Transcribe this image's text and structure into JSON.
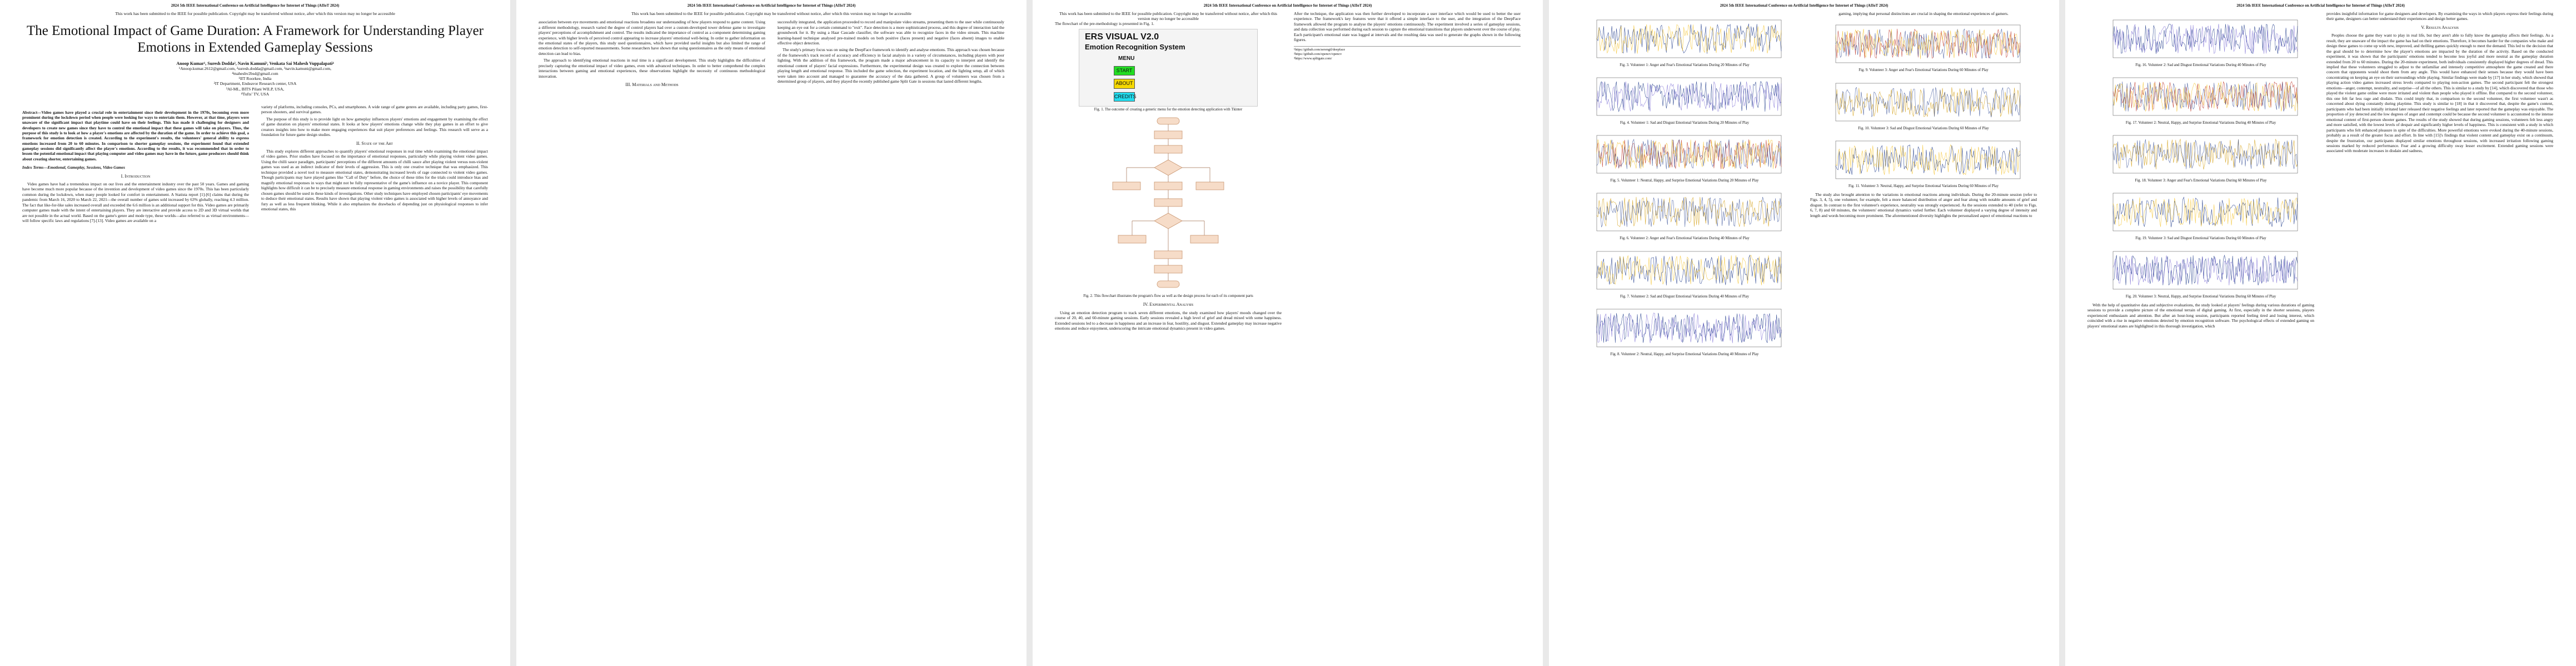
{
  "header": "2024 5th IEEE International Conference on Artificial Intelligence for Internet of Things (AIIoT 2024)",
  "notice": "This work has been submitted to the IEEE for possible publication. Copyright may be transferred without notice, after which this version may no longer be accessible",
  "title": "The Emotional Impact of Game Duration: A Framework for Understanding Player Emotions in Extended Gameplay Sessions",
  "authors": "Anoop Kumar¹, Suresh Dodda², Navin Kamuni³, Venkata Sai Mahesh Vuppalapati⁴",
  "affiliations": [
    "¹Anoop.kumar.2612@gmail.com, ²suresh.dodda@gmail.com, ³navin.kamuni@gmail.com,",
    "⁴maheshv2bsd@gmail.com",
    "¹IIT Roorkee, India",
    "²IT Department, Endeavor Research center, USA",
    "³AI-ML, BITS Pilani WILP, USA,",
    "⁴Tufts’ TV, USA"
  ],
  "abstract": "Abstract—Video games have played a crucial role in entertainment since their development in the 1970s, becoming even more prominent during the lockdown period when people were looking for ways to entertain them. However, at that time, players were unaware of the significant impact that playtime could have on their feelings. This has made it challenging for designers and developers to create new games since they have to control the emotional impact that these games will take on players. Thus, the purpose of this study is to look at how a player's emotions are affected by the duration of the game. In order to achieve this goal, a framework for emotion detection is created. According to the experiment's results, the volunteers' general ability to express emotions increased from 20 to 60 minutes. In comparison to shorter gameplay sessions, the experiment found that extended gameplay sessions did significantly affect the player's emotions. According to the results, it was recommended that in order to lessen the potential emotional impact that playing computer and video games may have in the future, game producers should think about creating shorter, entertaining games.",
  "index_terms": "Index Terms—Emotional, Gameplay, Sessions, Video Games",
  "sections": {
    "intro": "I. Introduction",
    "state": "II. State of the Art",
    "methods": "III. Materials and Methods",
    "experiment": "IV. Experimental Analysis",
    "results": "V. Results Analysis"
  },
  "p1": {
    "col1": [
      "Video games have had a tremendous impact on our lives and the entertainment industry over the past 50 years. Games and gaming have become much more popular because of the invention and development of video games since the 1970s. This has been particularly common during the lockdown, when many people looked for comfort in entertainment. A Statista report [1]-[6] claims that during the pandemic from March 16, 2020 to March 22, 2021—the overall number of games sold increased by 63% globally, reaching 4.3 million. The fact that like-for-like sales increased overall and exceeded the 6.6 million is an additional support for this. Video games are primarily computer games made with the intent of entertaining players. They are interactive and provide access to 2D and 3D virtual worlds that are not possible in the actual world. Based on the game's genre and mode type, these worlds—also referred to as virtual environments—will follow specific laws and regulations [7]-[13]. Video games are available on a"
    ],
    "col2": [
      "variety of platforms, including consoles, PCs, and smartphones. A wide range of game genres are available, including party games, first-person shooters, and survival games.",
      "The purpose of this study is to provide light on how gameplay influences players' emotions and engagement by examining the effect of game duration on players' emotional states. It looks at how players' emotions change while they play games in an effort to give creators insights into how to make more engaging experiences that suit player preferences and feelings. This research will serve as a foundation for future game design studies.",
      "This study explores different approaches to quantify players' emotional responses in real time while examining the emotional impact of video games. Prior studies have focused on the importance of emotional responses, particularly while playing violent video games. Using the chilli sauce paradigm, participants' perceptions of the different amounts of chilli sauce after playing violent versus non-violent games was used as an indirect indicator of their levels of aggression. This is only one creative technique that was emphasized. This technique provided a novel tool to measure emotional states, demonstrating increased levels of rage connected to violent video games. Though participants may have played games like \"Call of Duty\" before, the choice of these titles for the trials could introduce bias and magnify emotional responses in ways that might not be fully representative of the game's influence on a novice player. This component highlights how difficult it can be to precisely measure emotional response in gaming environments and raises the possibility that carefully chosen games should be used in these kinds of investigations. Other study techniques have employed chosen participants' eye movements to deduce their emotional states. Results have shown that playing violent video games is associated with higher levels of annoyance and fury as well as less frequent blinking. While it also emphasizes the drawbacks of depending just on physiological responses to infer emotional states, this"
    ]
  },
  "p2": {
    "col1": [
      "association between eye movements and emotional reactions broadens our understanding of how players respond to game content. Using a different methodology, research varied the degree of control players had over a custom-developed tower defense game to investigate players' perceptions of accomplishment and control. The results indicated the importance of control as a component determining gaming experience, with higher levels of perceived control appearing to increase players' emotional well-being. In order to gather information on the emotional states of the players, this study used questionnaires, which have provided useful insights but also limited the range of emotion detection to self-reported measurements. Some researchers have shown that using questionnaires as the only means of emotional detection can lead to bias.",
      "The approach to identifying emotional reactions in real time is a significant development. This study highlights the difficulties of precisely capturing the emotional impact of video games, even with advanced techniques. In order to better comprehend the complex interactions between gaming and emotional experiences, these observations highlight the necessity of continuous methodological innovation."
    ],
    "col2": [
      "successfully integrated, the application proceeded to record and manipulate video streams, presenting them to the user while continuously keeping an eye out for a certain command to \"exit\". Face detection is a more sophisticated process, and this degree of interaction laid the groundwork for it. By using a Haar Cascade classifier, the software was able to recognize faces in the video stream. This machine learning-based technique analysed pre-trained models on both positive (faces present) and negative (faces absent) images to enable effective object detection.",
      "The study's primary focus was on using the DeepFace framework to identify and analyse emotions. This approach was chosen because of the framework's track record of accuracy and efficiency in facial analysis in a variety of circumstances, including players with poor lighting. With the addition of this framework, the program made a major advancement in its capacity to interpret and identify the emotional content of players' facial expressions. Furthermore, the experimental design was created to explore the connection between playing length and emotional response. This included the game selection, the experiment location, and the lighting setup, all of which were taken into account and managed to guarantee the accuracy of the data gathered. A group of volunteers was chosen from a determined group of players, and they played the recently published game Split Gate in sessions that lasted different lengths."
    ]
  },
  "p3": {
    "col1": [
      "The flowchart of the pre-methodology is presented in Fig. 1."
    ],
    "gui": {
      "title": "ERS VISUAL V2.0",
      "subtitle": "Emotion Recognition System",
      "menu": "MENU",
      "start": "START",
      "about": "ABOUT",
      "credits": "CREDITS"
    },
    "fig1_cap": "Fig. 1. The outcome of creating a generic menu for the emotion detecting application with Tkinter",
    "fig2_cap": "Fig. 2. This flowchart illustrates the program's flow as well as the design process for each of its component parts",
    "exp_text": [
      "Using an emotion detection program to track seven different emotions, the study examined how players' moods changed over the course of 20, 40, and 60-minute gaming sessions. Early sessions revealed a high level of grief and dread mixed with some happiness. Extended sessions led to a decrease in happiness and an increase in fear, hostility, and disgust. Extended gameplay may increase negative emotions and reduce enjoyment, underscoring the intricate emotional dynamics present in video games."
    ],
    "col2": [
      "After the technique, the application was then further developed to incorporate a user interface which would be used to better the user experience. The framework's key features were that it offered a simple interface to the user, and the integration of the DeepFace framework allowed the program to analyse the players' emotions continuously. The experiment involved a series of gameplay sessions, and data collection was performed during each session to capture the emotional transitions that players underwent over the course of play. Each participant's emotional state was logged at intervals and the resulting data was used to generate the graphs shown in the following figures."
    ],
    "fn": [
      "¹https://github.com/serengil/deepface",
      "²https://github.com/opencv/opencv",
      "³https://www.splitgate.com/"
    ]
  },
  "p4": {
    "text": "gaming, implying that personal distinctions are crucial in shaping the emotional experiences of gamers.",
    "caps": [
      "Fig. 3. Volunteer 1: Anger and Fear's Emotional Variations During 20 Minutes of Play",
      "Fig. 4. Volunteer 1: Sad and Disgust Emotional Variations During 20 Minutes of Play",
      "Fig. 5. Volunteer 1: Neutral, Happy, and Surprise Emotional Variations During 20 Minutes of Play",
      "Fig. 6. Volunteer 2: Anger and Fear's Emotional Variations During 40 Minutes of Play",
      "Fig. 7. Volunteer 2: Sad and Disgust Emotional Variations During 40 Minutes of Play",
      "Fig. 8. Volunteer 2: Neutral, Happy, and Surprise Emotional Variations During 40 Minutes of Play",
      "Fig. 9. Volunteer 3: Anger and Fear's Emotional Variations During 60 Minutes of Play",
      "Fig. 10. Volunteer 3: Sad and Disgust Emotional Variations During 60 Minutes of Play",
      "Fig. 11. Volunteer 3: Neutral, Happy, and Surprise Emotional Variations During 60 Minutes of Play",
      "Fig. 12. Volunteer 2: Sad and Disgust Emotional Variations During 40 Minutes of Play",
      "Fig. 13. Volunteer 3: Anger and Fear's Emotional Variations During 60 Minutes of Play",
      "Fig. 14. Volunteer 3: Sad and Disgust Emotional Variations During 60 Minutes of Play"
    ],
    "body": [
      "The study also brought attention to the variations in emotional reactions among individuals. During the 20-minute session (refer to Figs. 3, 4, 5), one volunteer, for example, felt a more balanced distribution of anger and fear along with notable amounts of grief and disgust. In contrast to the first volunteer's experience, neutrality was strongly experienced. As the sessions extended to 40 (refer to Figs. 6, 7, 8) and 60 minutes, the volunteers' emotional dynamics varied further. Each volunteer displayed a varying degree of intensity and length and words becoming more prominent. The aforementioned diversity highlights the personalized aspect of emotional reactions to"
    ]
  },
  "p5": {
    "caps": [
      "Fig. 16. Volunteer 2: Sad and Disgust Emotional Variations During 40 Minutes of Play",
      "Fig. 17. Volunteer 2: Neutral, Happy, and Surprise Emotional Variations During 40 Minutes of Play",
      "Fig. 18. Volunteer 3: Anger and Fear's Emotional Variations During 60 Minutes of Play",
      "Fig. 19. Volunteer 3: Sad and Disgust Emotional Variations During 60 Minutes of Play",
      "Fig. 20. Volunteer 3: Neutral, Happy, and Surprise Emotional Variations During 60 Minutes of Play"
    ],
    "col1_tail": [
      "With the help of quantitative data and subjective evaluations, the study looked at players' feelings during various durations of gaming sessions to provide a complete picture of the emotional terrain of digital gaming. At first, especially in the shorter sessions, players experienced enthusiasm and attention. But after an hour-long session, participants reported feeling tired and losing interest, which coincided with a rise in negative emotions detected by emotion recognition software. The psychological effects of extended gaming on players' emotional states are highlighted in this thorough investigation, which"
    ],
    "col2": [
      "provides insightful information for game designers and developers. By examining the ways in which players express their feelings during their game, designers can better understand their experiences and design better games.",
      "Peoples choose the game they want to play in real life, but they aren't able to fully know the gameplay affects their feelings. As a result, they are unaware of the impact the game has had on their emotions. Therefore, it becomes harder for the companies who make and design these games to come up with new, improved, and thrilling games quickly enough to meet the demand. This led to the decision that the goal should be to determine how the player's emotions are impacted by the duration of the activity. Based on the conducted experiment, it was shown that the participants' emotions tended to become less joyful and more neutral as the gameplay duration extended from 20 to 60 minutes. During the 20-minute experiment, both individuals consistently displayed higher degrees of dread. This implied that these volunteers struggled to adjust to the unfamiliar and intensely competitive atmosphere the game created and there concern that opponents would shoot them from any angle. This would have enhanced their senses because they would have been concentrating on keeping an eye on their surroundings while playing. Similar findings were made by [17] in her study, which showed that playing action video games increased stress levels compared to playing non-action games. The second participant felt the strongest emotions—anger, contempt, neutrality, and surprise—of all the others. This is similar to a study by [14], which discovered that those who played the violent game online were more irritated and violent than people who played it offline. But compared to the second volunteer, this one felt far less rage and disdain. This could imply that, in comparison to the second volunteer, the first volunteer wasn't as concerned about dying constantly during playtime. This study is similar to [18] in that it discovered that, despite the game's content, participants who had been initially irritated later released their negative feelings and later reported that the gameplay was enjoyable. The proportion of joy detected and the low degrees of anger and contempt could be because the second volunteer is accustomed to the intense emotional content of first-person shooter games. The results of the study showed that during gaming sessions, volunteers felt less angry and more satisfied, with the lowest levels of despair and significantly higher levels of happiness. This is consistent with a study in which participants who felt enhanced pleasure in spite of the difficulties. More powerful emotions were evoked during the 40-minute sessions, probably as a result of the greater focus and effort. In line with [15]'s findings that violent content and gameplay exist on a continuum, despite the frustration, our participants displayed similar emotions throughout sessions, with increased irritation following gaming sessions marked by reduced performance. Fear and a growing difficulty sway lesser excitement. Extended gaming sessions were associated with moderate increases in disdain and sadness,"
    ]
  }
}
